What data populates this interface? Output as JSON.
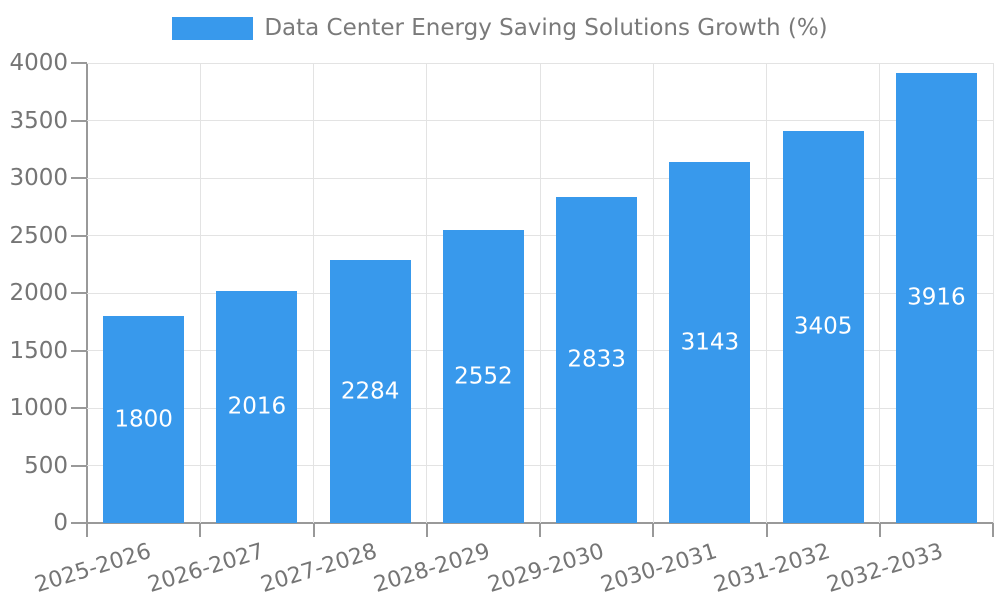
{
  "legend": {
    "label": "Data Center Energy Saving Solutions Growth (%)"
  },
  "chart_data": {
    "type": "bar",
    "title": "Data Center Energy Saving Solutions Growth (%)",
    "series_name": "Data Center Energy Saving Solutions Growth (%)",
    "categories": [
      "2025-2026",
      "2026-2027",
      "2027-2028",
      "2028-2029",
      "2029-2030",
      "2030-2031",
      "2031-2032",
      "2032-2033"
    ],
    "values": [
      1800,
      2016,
      2284,
      2552,
      2833,
      3143,
      3405,
      3916
    ],
    "xlabel": "",
    "ylabel": "",
    "ylim": [
      0,
      4000
    ],
    "ytick_interval": 500,
    "ytick_labels": [
      "0",
      "500",
      "1000",
      "1500",
      "2000",
      "2500",
      "3000",
      "3500",
      "4000"
    ],
    "grid": "both",
    "legend_position": "top-center",
    "value_labels": "inside-center-white",
    "xtick_label_rotation_deg": -17
  },
  "colors": {
    "bar": "#3899EC",
    "axis_line": "#999999",
    "gridline": "#e3e3e3",
    "tick_text": "#757575",
    "legend_text": "#7a7a7a",
    "bar_label_text": "#ffffff",
    "background": "#ffffff"
  }
}
